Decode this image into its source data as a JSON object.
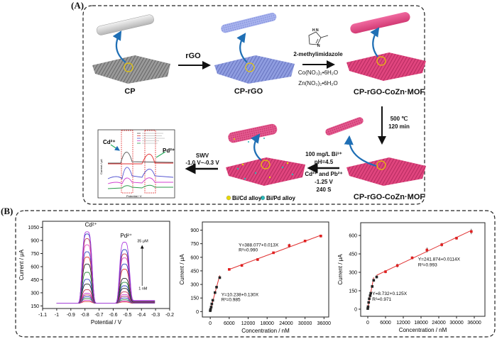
{
  "panel_a": {
    "label": "(A)",
    "stages": {
      "cp": "CP",
      "cp_rgo": "CP-rGO",
      "cp_rgo_cozn_mof": "CP-rGO-CoZn·MOF",
      "cp_rgo_cozn_mof_2": "CP-rGO-CoZn·MOF"
    },
    "steps": {
      "rgo": "rGO",
      "ligand": "2-methylimidazole",
      "co_salt": "Co(NO₃)₂•6H₂O",
      "zn_salt": "Zn(NO₃)₂•6H₂O",
      "anneal_temp": "500 ℃",
      "anneal_time": "120 min",
      "bi": "100 mg/L Bi³⁺",
      "ph": "pH=4.5",
      "ions": "Cd²⁺ and Pb²⁺",
      "potential": "-1.25 V",
      "time": "240 S",
      "swv": "SWV",
      "swv_range": "-1.0 V~-0.3 V"
    },
    "molecule_atoms": {
      "nh": "H\nN",
      "n": "N"
    },
    "legend": {
      "bicd": "Bi/Cd alloy",
      "bipd": "Bi/Pd alloy",
      "bicd_color": "#e8d800",
      "bipd_color": "#2ab8b8"
    },
    "inset": {
      "cd": "Cd²⁺",
      "pd": "Pd²⁺",
      "ylabel": "Current / μA",
      "xlabel": "Potential / V"
    },
    "colors": {
      "cp": "#9a9a9a",
      "rgo": "#8f9de0",
      "mof": "#e0457e",
      "arrow": "#1f6fb5",
      "ring": "#e8c800"
    }
  },
  "panel_b": {
    "label": "(B)"
  },
  "chart_data": [
    {
      "type": "line",
      "xlabel": "Potential / V",
      "ylabel": "Current / μA",
      "xlim": [
        -1.1,
        -0.2
      ],
      "ylim": [
        120,
        1120
      ],
      "xticks": [
        -1.1,
        -1.0,
        -0.9,
        -0.8,
        -0.7,
        -0.6,
        -0.5,
        -0.4,
        -0.3,
        -0.2
      ],
      "yticks": [
        150,
        300,
        450,
        600,
        750,
        900,
        1050
      ],
      "annotations": {
        "cd": "Cd²⁺",
        "pd": "Pd²⁺",
        "top": "35 μM",
        "bottom": "1 nM"
      },
      "baseline": 180,
      "series": [
        {
          "cd_peak": 200,
          "pd_peak": 195,
          "color": "#e03030"
        },
        {
          "cd_peak": 215,
          "pd_peak": 205,
          "color": "#d040d0"
        },
        {
          "cd_peak": 235,
          "pd_peak": 220,
          "color": "#2a8a3a"
        },
        {
          "cd_peak": 255,
          "pd_peak": 240,
          "color": "#3040c0"
        },
        {
          "cd_peak": 275,
          "pd_peak": 260,
          "color": "#a03060"
        },
        {
          "cd_peak": 295,
          "pd_peak": 280,
          "color": "#d040d0"
        },
        {
          "cd_peak": 335,
          "pd_peak": 310,
          "color": "#c03050"
        },
        {
          "cd_peak": 400,
          "pd_peak": 350,
          "color": "#222222"
        },
        {
          "cd_peak": 455,
          "pd_peak": 380,
          "color": "#3040c0"
        },
        {
          "cd_peak": 535,
          "pd_peak": 420,
          "color": "#2a8a3a"
        },
        {
          "cd_peak": 630,
          "pd_peak": 465,
          "color": "#222222"
        },
        {
          "cd_peak": 710,
          "pd_peak": 570,
          "color": "#e03030"
        },
        {
          "cd_peak": 770,
          "pd_peak": 630,
          "color": "#3040c0"
        },
        {
          "cd_peak": 850,
          "pd_peak": 700,
          "color": "#e040c0"
        },
        {
          "cd_peak": 920,
          "pd_peak": 745,
          "color": "#c03050"
        },
        {
          "cd_peak": 975,
          "pd_peak": 795,
          "color": "#3040c0"
        },
        {
          "cd_peak": 1000,
          "pd_peak": 880,
          "color": "#b040e0"
        }
      ]
    },
    {
      "type": "scatter",
      "xlabel": "Concentration / nM",
      "ylabel": "Current / μA",
      "xlim": [
        -2500,
        37500
      ],
      "ylim": [
        -60,
        990
      ],
      "xticks": [
        0,
        6000,
        12000,
        18000,
        24000,
        30000,
        36000
      ],
      "yticks": [
        0,
        150,
        300,
        450,
        600,
        750,
        900
      ],
      "fits": [
        {
          "equation": "Y=10.238+0.130X",
          "r2": "R²=0.985",
          "a": 10.238,
          "b": 0.13,
          "range": [
            0,
            3000
          ]
        },
        {
          "equation": "Y=388.077+0.013X",
          "r2": "R²=0.990",
          "a": 388.077,
          "b": 0.013,
          "range": [
            6000,
            35000
          ]
        }
      ],
      "points": {
        "x": [
          0,
          100,
          300,
          500,
          800,
          1500,
          2000,
          3000,
          6000,
          10000,
          15000,
          20000,
          25000,
          30000,
          35000
        ],
        "y": [
          10,
          25,
          50,
          85,
          125,
          210,
          270,
          375,
          466,
          510,
          575,
          650,
          730,
          780,
          835
        ],
        "err": [
          5,
          5,
          5,
          6,
          6,
          10,
          8,
          8,
          10,
          15,
          15,
          8,
          20,
          8,
          15
        ]
      }
    },
    {
      "type": "scatter",
      "xlabel": "Concentration / nM",
      "ylabel": "Current / μA",
      "xlim": [
        -2400,
        39600
      ],
      "ylim": [
        -58,
        704
      ],
      "xticks": [
        0,
        6000,
        12000,
        18000,
        24000,
        30000,
        36000
      ],
      "yticks": [
        0,
        150,
        300,
        450,
        600
      ],
      "fits": [
        {
          "equation": "Y=8.732+0.125X",
          "r2": "R²=0.971",
          "a": 8.732,
          "b": 0.125,
          "range": [
            0,
            2000
          ]
        },
        {
          "equation": "Y=241.874+0.0114X",
          "r2": "R²=0.993",
          "a": 241.874,
          "b": 0.0114,
          "range": [
            3000,
            35000
          ]
        }
      ],
      "points": {
        "x": [
          0,
          100,
          300,
          500,
          800,
          1000,
          1500,
          2000,
          3000,
          6000,
          10000,
          15000,
          20000,
          25000,
          30000,
          35000
        ],
        "y": [
          5,
          20,
          55,
          85,
          110,
          130,
          185,
          235,
          262,
          305,
          355,
          418,
          482,
          525,
          578,
          632
        ],
        "err": [
          8,
          8,
          8,
          8,
          8,
          8,
          10,
          10,
          12,
          12,
          15,
          12,
          20,
          15,
          12,
          22
        ]
      }
    }
  ]
}
